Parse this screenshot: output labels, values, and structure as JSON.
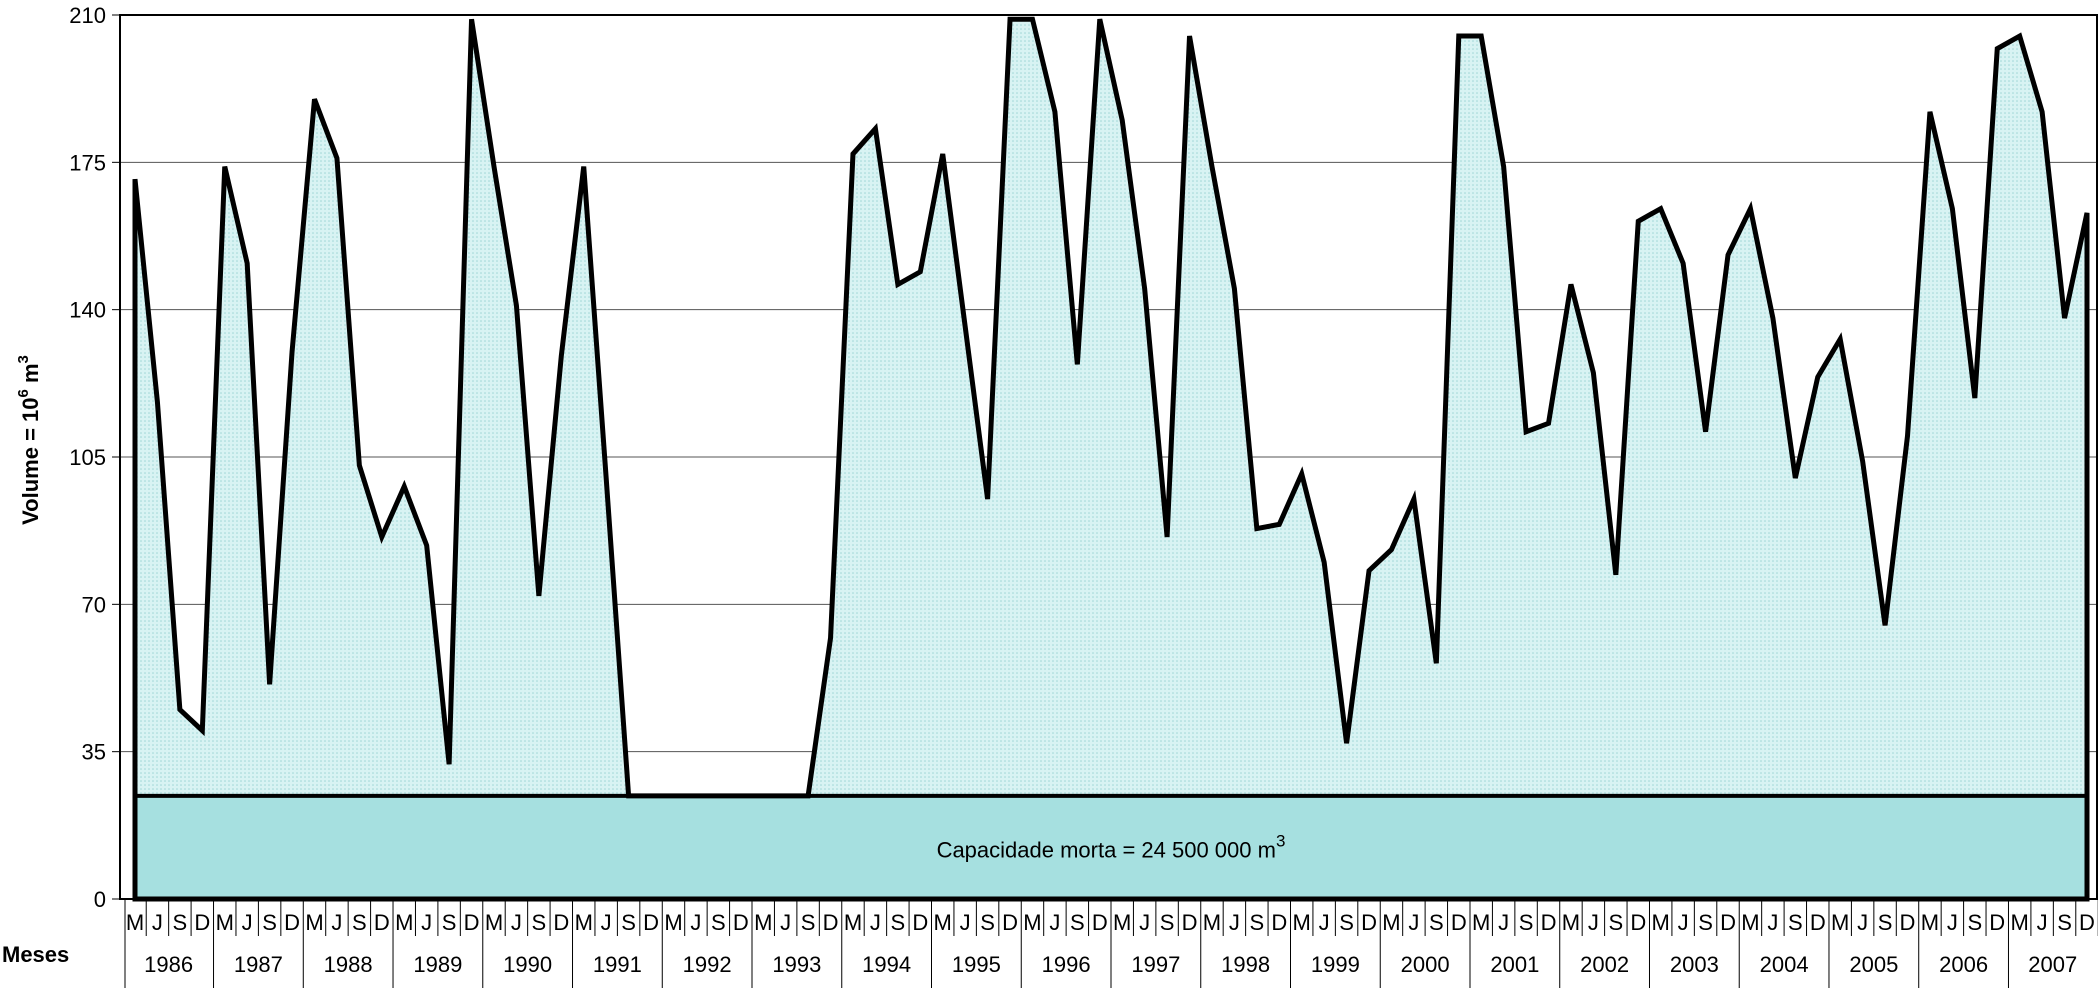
{
  "chart_data": {
    "type": "area",
    "y_label": {
      "base": "Volume = 10",
      "exp": "6",
      "unit": " m",
      "unit_exp": "3"
    },
    "x_label": "Meses",
    "annotation": {
      "text": "Capacidade morta = 24 500 000 m",
      "sup": "3"
    },
    "dead_capacity": 24.5,
    "years": [
      "1986",
      "1987",
      "1988",
      "1989",
      "1990",
      "1991",
      "1992",
      "1993",
      "1994",
      "1995",
      "1996",
      "1997",
      "1998",
      "1999",
      "2000",
      "2001",
      "2002",
      "2003",
      "2004",
      "2005",
      "2006",
      "2007"
    ],
    "categories": [
      "M",
      "J",
      "S",
      "D",
      "M",
      "J",
      "S",
      "D",
      "M",
      "J",
      "S",
      "D",
      "M",
      "J",
      "S",
      "D",
      "M",
      "J",
      "S",
      "D",
      "M",
      "J",
      "S",
      "D",
      "M",
      "J",
      "S",
      "D",
      "M",
      "J",
      "S",
      "D",
      "M",
      "J",
      "S",
      "D",
      "M",
      "J",
      "S",
      "D",
      "M",
      "J",
      "S",
      "D",
      "M",
      "J",
      "S",
      "D",
      "M",
      "J",
      "S",
      "D",
      "M",
      "J",
      "S",
      "D",
      "M",
      "J",
      "S",
      "D",
      "M",
      "J",
      "S",
      "D",
      "M",
      "J",
      "S",
      "D",
      "M",
      "J",
      "S",
      "D",
      "M",
      "J",
      "S",
      "D",
      "M",
      "J",
      "S",
      "D",
      "M",
      "J",
      "S",
      "D",
      "M",
      "J",
      "S",
      "D"
    ],
    "series": [
      {
        "name": "Volume",
        "color": "#000000",
        "fill": "#d2f0f0",
        "band_color": "#a6e0e0",
        "values": [
          171,
          118,
          45,
          40,
          174,
          151,
          51,
          130,
          190,
          176,
          103,
          86,
          98,
          84,
          32,
          209,
          174,
          141,
          72,
          129,
          174,
          100,
          24.5,
          24.5,
          24.5,
          24.5,
          24.5,
          24.5,
          24.5,
          24.5,
          24.5,
          62,
          177,
          183,
          146,
          149,
          177,
          136,
          95,
          209,
          209,
          187,
          127,
          209,
          185,
          145,
          86,
          205,
          174,
          145,
          88,
          89,
          101,
          80,
          37,
          78,
          83,
          95,
          56,
          205,
          205,
          174,
          111,
          113,
          146,
          125,
          77,
          161,
          164,
          151,
          111,
          153,
          164,
          138,
          100,
          124,
          133,
          104,
          65,
          110,
          187,
          164,
          119,
          202,
          205,
          187,
          138,
          163
        ]
      }
    ],
    "ylim": [
      0,
      210
    ],
    "yticks": [
      0,
      35,
      70,
      105,
      140,
      175,
      210
    ],
    "grid": true
  }
}
